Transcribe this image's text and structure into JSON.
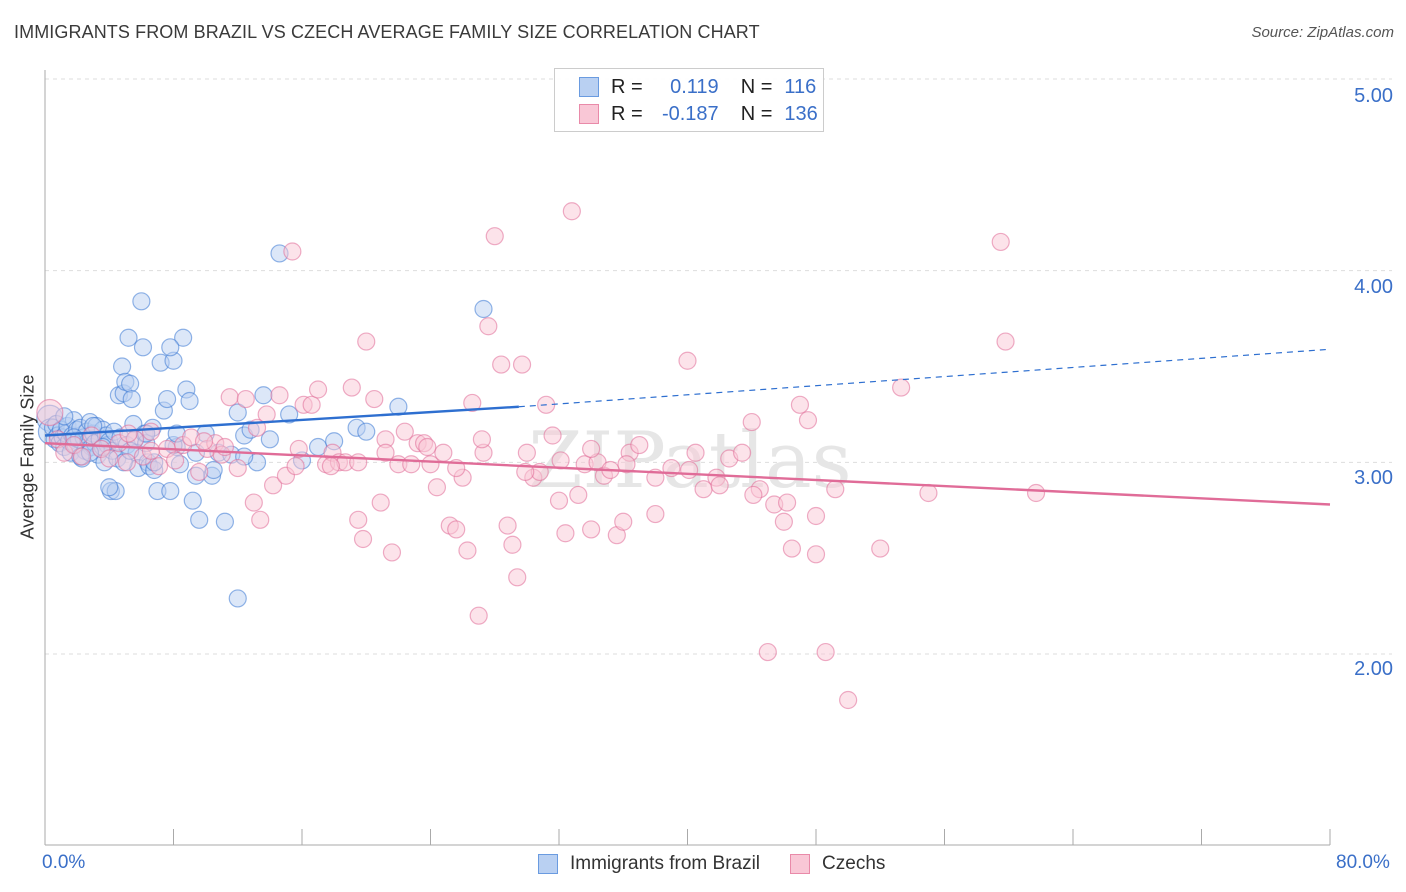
{
  "title": "IMMIGRANTS FROM BRAZIL VS CZECH AVERAGE FAMILY SIZE CORRELATION CHART",
  "source": "Source: ZipAtlas.com",
  "watermark": "ZIPatlas",
  "legend": {
    "r_label": "R =",
    "n_label": "N =",
    "rows": [
      {
        "name": "Immigrants from Brazil",
        "r": "0.119",
        "n": "116",
        "fill": "#b9d0f2",
        "stroke": "#6a9be0"
      },
      {
        "name": "Czechs",
        "r": "-0.187",
        "n": "136",
        "fill": "#f9c7d6",
        "stroke": "#e98aa9"
      }
    ]
  },
  "chart_data": {
    "type": "scatter",
    "title": "IMMIGRANTS FROM BRAZIL VS CZECH AVERAGE FAMILY SIZE CORRELATION CHART",
    "xlabel": "",
    "ylabel": "Average Family Size",
    "xlim": [
      0,
      80
    ],
    "ylim": [
      1.0,
      5.1
    ],
    "x_tick_labels": [
      "0.0%",
      "80.0%"
    ],
    "y_ticks": [
      2.0,
      3.0,
      4.0,
      5.0
    ],
    "y_tick_labels": [
      "2.00",
      "3.00",
      "4.00",
      "5.00"
    ],
    "grid": true,
    "legend_position": "top-center",
    "series": [
      {
        "name": "Immigrants from Brazil",
        "color": "#3a78d4",
        "fill": "#b9d0f2",
        "r": 0.119,
        "n": 116,
        "trend": {
          "x0": 0,
          "y0": 3.14,
          "x1": 29.5,
          "y1": 3.29,
          "dashed_to_x": 80,
          "dashed_to_y": 3.59
        },
        "points": [
          [
            0.3,
            3.23
          ],
          [
            0.4,
            3.16
          ],
          [
            0.5,
            3.18
          ],
          [
            0.6,
            3.12
          ],
          [
            0.7,
            3.2
          ],
          [
            0.8,
            3.14
          ],
          [
            0.9,
            3.1
          ],
          [
            1.0,
            3.17
          ],
          [
            1.1,
            3.13
          ],
          [
            1.2,
            3.08
          ],
          [
            1.3,
            3.15
          ],
          [
            1.4,
            3.19
          ],
          [
            1.5,
            3.11
          ],
          [
            1.6,
            3.05
          ],
          [
            1.7,
            3.14
          ],
          [
            1.8,
            3.22
          ],
          [
            1.9,
            3.09
          ],
          [
            2.0,
            3.17
          ],
          [
            2.1,
            3.12
          ],
          [
            2.2,
            3.18
          ],
          [
            2.3,
            3.02
          ],
          [
            2.4,
            3.13
          ],
          [
            2.5,
            3.06
          ],
          [
            2.6,
            3.16
          ],
          [
            2.7,
            3.11
          ],
          [
            2.8,
            3.21
          ],
          [
            2.9,
            3.08
          ],
          [
            3.0,
            3.15
          ],
          [
            3.1,
            3.1
          ],
          [
            3.2,
            3.19
          ],
          [
            3.3,
            3.04
          ],
          [
            3.4,
            3.12
          ],
          [
            3.5,
            3.07
          ],
          [
            3.6,
            3.17
          ],
          [
            3.7,
            3.0
          ],
          [
            3.8,
            3.14
          ],
          [
            3.9,
            3.09
          ],
          [
            4.0,
            3.11
          ],
          [
            4.1,
            2.85
          ],
          [
            4.2,
            3.06
          ],
          [
            4.3,
            3.16
          ],
          [
            4.4,
            2.85
          ],
          [
            4.5,
            3.02
          ],
          [
            4.6,
            3.35
          ],
          [
            4.7,
            3.13
          ],
          [
            4.8,
            3.5
          ],
          [
            4.9,
            3.36
          ],
          [
            5.0,
            3.42
          ],
          [
            5.1,
            3.09
          ],
          [
            5.2,
            3.65
          ],
          [
            5.3,
            3.41
          ],
          [
            5.4,
            3.33
          ],
          [
            5.5,
            3.2
          ],
          [
            5.6,
            3.12
          ],
          [
            5.7,
            3.05
          ],
          [
            5.8,
            2.97
          ],
          [
            6.0,
            3.84
          ],
          [
            6.1,
            3.6
          ],
          [
            6.2,
            3.15
          ],
          [
            6.3,
            3.1
          ],
          [
            6.4,
            3.0
          ],
          [
            6.5,
            2.98
          ],
          [
            6.7,
            3.18
          ],
          [
            6.8,
            2.96
          ],
          [
            7.0,
            2.85
          ],
          [
            7.2,
            3.52
          ],
          [
            7.4,
            3.27
          ],
          [
            7.6,
            3.33
          ],
          [
            7.8,
            2.85
          ],
          [
            8.0,
            3.53
          ],
          [
            8.2,
            3.08
          ],
          [
            8.4,
            2.99
          ],
          [
            8.6,
            3.65
          ],
          [
            8.8,
            3.38
          ],
          [
            9.0,
            3.32
          ],
          [
            9.2,
            2.8
          ],
          [
            9.4,
            3.05
          ],
          [
            9.6,
            2.7
          ],
          [
            10.0,
            3.15
          ],
          [
            10.4,
            2.93
          ],
          [
            10.8,
            3.05
          ],
          [
            11.2,
            2.69
          ],
          [
            11.6,
            3.04
          ],
          [
            12.0,
            3.26
          ],
          [
            12.4,
            3.14
          ],
          [
            12.8,
            3.17
          ],
          [
            13.2,
            3.0
          ],
          [
            13.6,
            3.35
          ],
          [
            14.0,
            3.12
          ],
          [
            14.6,
            4.09
          ],
          [
            15.2,
            3.25
          ],
          [
            16.0,
            3.01
          ],
          [
            17.0,
            3.08
          ],
          [
            18.0,
            3.11
          ],
          [
            19.4,
            3.18
          ],
          [
            20.0,
            3.16
          ],
          [
            22.0,
            3.29
          ],
          [
            27.3,
            3.8
          ],
          [
            12.0,
            2.29
          ],
          [
            9.4,
            2.93
          ],
          [
            3.0,
            3.19
          ],
          [
            1.2,
            3.24
          ],
          [
            7.8,
            3.6
          ],
          [
            4.9,
            3.0
          ],
          [
            5.3,
            3.06
          ],
          [
            2.2,
            3.03
          ],
          [
            6.3,
            3.15
          ],
          [
            8.0,
            3.09
          ],
          [
            10.5,
            2.96
          ],
          [
            12.4,
            3.03
          ],
          [
            3.6,
            3.08
          ],
          [
            1.8,
            3.13
          ],
          [
            4.0,
            2.87
          ],
          [
            6.8,
            3.0
          ],
          [
            8.2,
            3.15
          ],
          [
            2.8,
            3.05
          ]
        ]
      },
      {
        "name": "Czechs",
        "color": "#e06c98",
        "fill": "#f9c7d6",
        "r": -0.187,
        "n": 136,
        "trend": {
          "x0": 0,
          "y0": 3.1,
          "x1": 80,
          "y1": 2.78
        },
        "points": [
          [
            0.3,
            3.26
          ],
          [
            0.8,
            3.12
          ],
          [
            1.2,
            3.05
          ],
          [
            1.8,
            3.09
          ],
          [
            2.3,
            3.03
          ],
          [
            2.9,
            3.14
          ],
          [
            3.5,
            3.07
          ],
          [
            4.0,
            3.02
          ],
          [
            4.6,
            3.1
          ],
          [
            5.1,
            3.0
          ],
          [
            5.6,
            3.12
          ],
          [
            6.1,
            3.03
          ],
          [
            6.6,
            3.16
          ],
          [
            7.1,
            2.98
          ],
          [
            7.6,
            3.07
          ],
          [
            8.1,
            3.01
          ],
          [
            8.6,
            3.09
          ],
          [
            9.1,
            3.13
          ],
          [
            9.6,
            2.95
          ],
          [
            10.1,
            3.07
          ],
          [
            10.6,
            3.1
          ],
          [
            11.0,
            3.04
          ],
          [
            11.5,
            3.34
          ],
          [
            12.0,
            2.97
          ],
          [
            12.5,
            3.33
          ],
          [
            13.0,
            2.79
          ],
          [
            13.4,
            2.7
          ],
          [
            13.8,
            3.25
          ],
          [
            14.2,
            2.88
          ],
          [
            14.6,
            3.35
          ],
          [
            15.0,
            2.93
          ],
          [
            15.4,
            4.1
          ],
          [
            15.8,
            3.07
          ],
          [
            16.1,
            3.3
          ],
          [
            16.6,
            3.3
          ],
          [
            17.0,
            3.38
          ],
          [
            17.5,
            2.99
          ],
          [
            17.9,
            3.05
          ],
          [
            18.3,
            3.0
          ],
          [
            18.7,
            3.0
          ],
          [
            19.1,
            3.39
          ],
          [
            19.5,
            2.7
          ],
          [
            19.8,
            2.6
          ],
          [
            20.0,
            3.63
          ],
          [
            20.5,
            3.33
          ],
          [
            20.9,
            2.79
          ],
          [
            21.2,
            3.12
          ],
          [
            21.6,
            2.53
          ],
          [
            22.0,
            2.99
          ],
          [
            22.4,
            3.16
          ],
          [
            22.8,
            2.99
          ],
          [
            23.2,
            3.1
          ],
          [
            23.6,
            3.1
          ],
          [
            24.0,
            2.99
          ],
          [
            24.4,
            2.87
          ],
          [
            24.8,
            3.05
          ],
          [
            25.2,
            2.67
          ],
          [
            25.6,
            2.65
          ],
          [
            26.0,
            2.92
          ],
          [
            26.3,
            2.54
          ],
          [
            26.6,
            3.31
          ],
          [
            27.0,
            2.2
          ],
          [
            27.3,
            3.05
          ],
          [
            27.6,
            3.71
          ],
          [
            28.0,
            4.18
          ],
          [
            28.4,
            3.51
          ],
          [
            28.8,
            2.67
          ],
          [
            29.1,
            2.57
          ],
          [
            29.4,
            2.4
          ],
          [
            29.7,
            3.51
          ],
          [
            30.0,
            3.05
          ],
          [
            30.4,
            2.92
          ],
          [
            30.8,
            2.95
          ],
          [
            31.2,
            3.3
          ],
          [
            31.6,
            3.14
          ],
          [
            32.0,
            2.8
          ],
          [
            32.4,
            2.63
          ],
          [
            32.8,
            4.31
          ],
          [
            33.2,
            2.83
          ],
          [
            33.6,
            2.99
          ],
          [
            34.0,
            2.65
          ],
          [
            34.4,
            3.0
          ],
          [
            34.8,
            2.93
          ],
          [
            35.2,
            2.96
          ],
          [
            35.6,
            2.62
          ],
          [
            36.0,
            2.69
          ],
          [
            36.4,
            3.05
          ],
          [
            37.0,
            3.09
          ],
          [
            38.0,
            2.73
          ],
          [
            39.0,
            2.97
          ],
          [
            40.0,
            3.53
          ],
          [
            40.5,
            3.05
          ],
          [
            41.0,
            2.86
          ],
          [
            41.8,
            2.92
          ],
          [
            42.6,
            3.02
          ],
          [
            43.4,
            3.05
          ],
          [
            44.0,
            3.21
          ],
          [
            44.5,
            2.86
          ],
          [
            45.0,
            2.01
          ],
          [
            45.4,
            2.78
          ],
          [
            46.0,
            2.69
          ],
          [
            46.5,
            2.55
          ],
          [
            47.0,
            3.3
          ],
          [
            47.5,
            3.22
          ],
          [
            48.0,
            2.52
          ],
          [
            48.6,
            2.01
          ],
          [
            49.2,
            2.86
          ],
          [
            50.0,
            1.76
          ],
          [
            52.0,
            2.55
          ],
          [
            53.3,
            3.39
          ],
          [
            55.0,
            2.84
          ],
          [
            59.5,
            4.15
          ],
          [
            59.8,
            3.63
          ],
          [
            61.7,
            2.84
          ],
          [
            5.2,
            3.15
          ],
          [
            9.9,
            3.11
          ],
          [
            6.6,
            3.06
          ],
          [
            11.2,
            3.08
          ],
          [
            13.2,
            3.18
          ],
          [
            15.6,
            2.98
          ],
          [
            17.8,
            2.98
          ],
          [
            19.5,
            3.0
          ],
          [
            21.2,
            3.05
          ],
          [
            23.8,
            3.08
          ],
          [
            25.6,
            2.97
          ],
          [
            27.2,
            3.12
          ],
          [
            29.9,
            2.95
          ],
          [
            32.1,
            3.01
          ],
          [
            34.0,
            3.07
          ],
          [
            36.2,
            2.99
          ],
          [
            38.0,
            2.92
          ],
          [
            40.1,
            2.96
          ],
          [
            42.0,
            2.88
          ],
          [
            44.1,
            2.83
          ],
          [
            46.2,
            2.79
          ],
          [
            48.0,
            2.72
          ]
        ]
      }
    ]
  }
}
